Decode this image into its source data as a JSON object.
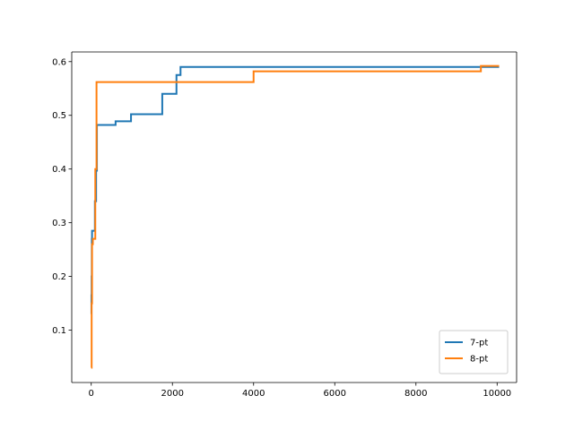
{
  "chart_data": {
    "type": "line",
    "step": true,
    "title": "",
    "xlabel": "",
    "ylabel": "",
    "xlim": [
      -480,
      10480
    ],
    "ylim": [
      0.0025,
      0.618
    ],
    "xticks": [
      0,
      2000,
      4000,
      6000,
      8000,
      10000
    ],
    "yticks": [
      0.1,
      0.2,
      0.3,
      0.4,
      0.5,
      0.6
    ],
    "xtick_labels": [
      "0",
      "2000",
      "4000",
      "6000",
      "8000",
      "10000"
    ],
    "ytick_labels": [
      "0.1",
      "0.2",
      "0.3",
      "0.4",
      "0.5",
      "0.6"
    ],
    "grid": false,
    "legend_position": "lower-right",
    "series": [
      {
        "name": "7-pt",
        "color": "#1f77b4",
        "x": [
          0,
          5,
          10,
          15,
          20,
          50,
          90,
          120,
          140,
          600,
          980,
          1750,
          2100,
          2200,
          10050
        ],
        "y": [
          0.13,
          0.165,
          0.2,
          0.27,
          0.285,
          0.285,
          0.34,
          0.397,
          0.482,
          0.489,
          0.502,
          0.54,
          0.575,
          0.59,
          0.59
        ]
      },
      {
        "name": "8-pt",
        "color": "#ff7f0e",
        "x": [
          0,
          10,
          20,
          40,
          70,
          100,
          130,
          4000,
          9600,
          10050
        ],
        "y": [
          0.03,
          0.15,
          0.26,
          0.27,
          0.27,
          0.4,
          0.562,
          0.582,
          0.592,
          0.592
        ]
      }
    ]
  }
}
